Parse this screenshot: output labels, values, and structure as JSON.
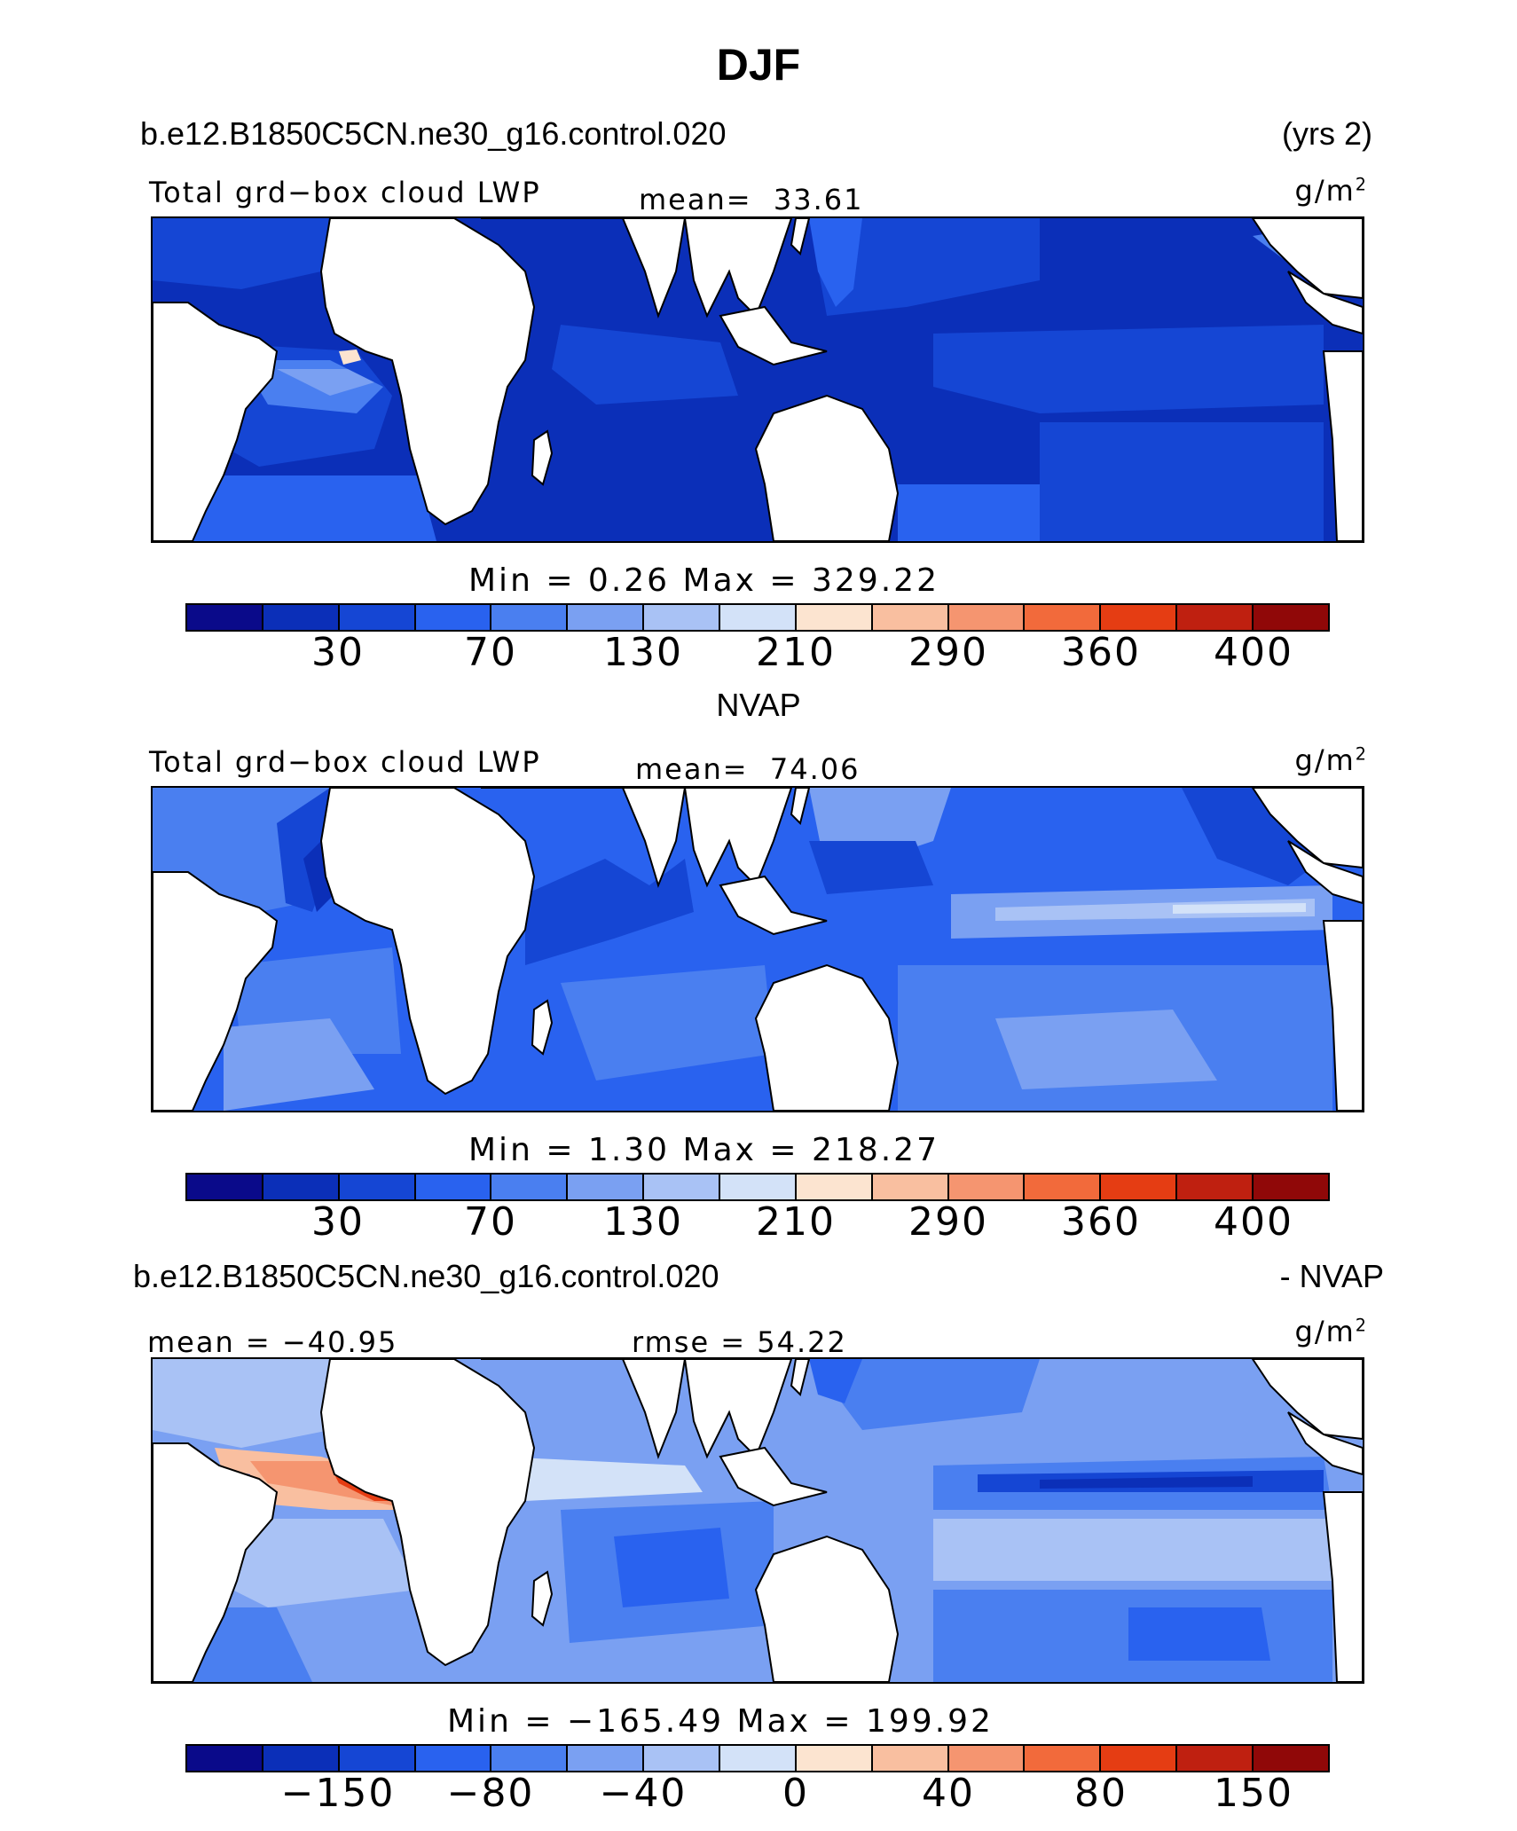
{
  "header": {
    "title": "DJF",
    "case_name": "b.e12.B1850C5CN.ne30_g16.control.020",
    "years": "(yrs 2)"
  },
  "panels": [
    {
      "variable": "Total grd−box cloud LWP",
      "stat_label": "mean=",
      "stat_value": "33.61",
      "units": "g/m",
      "units_sup": "2",
      "min_max": "Min =    0.26  Max = 329.22",
      "ticks": [
        "30",
        "70",
        "130",
        "210",
        "290",
        "360",
        "400"
      ],
      "field_style": "model"
    },
    {
      "heading": "NVAP",
      "variable": "Total grd−box cloud LWP",
      "stat_label": "mean=",
      "stat_value": "74.06",
      "units": "g/m",
      "units_sup": "2",
      "min_max": "Min =    1.30  Max = 218.27",
      "ticks": [
        "30",
        "70",
        "130",
        "210",
        "290",
        "360",
        "400"
      ],
      "field_style": "obs"
    },
    {
      "heading_left": "b.e12.B1850C5CN.ne30_g16.control.020",
      "heading_right": "- NVAP",
      "mean_text": "mean = −40.95",
      "rmse_text": "rmse =   54.22",
      "units": "g/m",
      "units_sup": "2",
      "min_max": "Min = −165.49  Max = 199.92",
      "ticks": [
        "−150",
        "−80",
        "−40",
        "0",
        "40",
        "80",
        "150"
      ],
      "field_style": "diff"
    }
  ],
  "colorbar_colors": [
    "#0a0a8a",
    "#0b2fb8",
    "#1546d4",
    "#2962ef",
    "#4a7ff0",
    "#7aa0f2",
    "#a9c2f5",
    "#d3e2f8",
    "#fce4d0",
    "#f9bfa0",
    "#f59570",
    "#f26a3b",
    "#e53d13",
    "#bf2010",
    "#900808"
  ]
}
